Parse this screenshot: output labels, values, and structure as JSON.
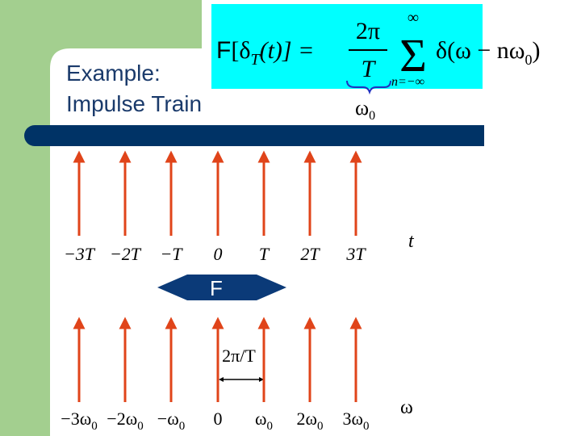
{
  "slide": {
    "title_lines": [
      "Example:",
      "Impulse Train"
    ],
    "formula": {
      "operator": "F",
      "lhs": "[δ",
      "lhs_sub": "T",
      "lhs_arg": "(t)] =",
      "fraction_num": "2π",
      "fraction_den": "T",
      "sum_upper": "∞",
      "sum_symbol": "Σ",
      "summand": "δ(ω − nω",
      "summand_sub": "0",
      "summand_end": ")",
      "sum_lower": "n=−∞",
      "brace_label": "ω",
      "brace_label_sub": "0"
    },
    "time_labels": [
      "−3T",
      "−2T",
      "−T",
      "0",
      "T",
      "2T",
      "3T"
    ],
    "time_axis": "t",
    "transform_label": "F",
    "spacing_label": "2π/T",
    "freq_labels": [
      {
        "main": "−3ω",
        "sub": "0"
      },
      {
        "main": "−2ω",
        "sub": "0"
      },
      {
        "main": "−ω",
        "sub": "0"
      },
      {
        "main": "0"
      },
      {
        "main": "ω",
        "sub": "0"
      },
      {
        "main": "2ω",
        "sub": "0"
      },
      {
        "main": "3ω",
        "sub": "0"
      }
    ],
    "freq_axis": "ω"
  }
}
